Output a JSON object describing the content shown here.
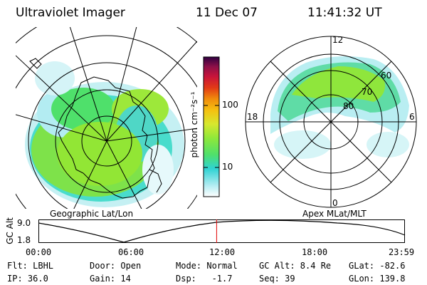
{
  "header": {
    "instrument": "Ultraviolet Imager",
    "date": "11 Dec 07",
    "time": "11:41:32 UT"
  },
  "left_panel": {
    "caption": "Geographic Lat/Lon"
  },
  "right_panel": {
    "caption": "Apex MLat/MLT",
    "mlt_labels": {
      "top": "12",
      "left": "18",
      "right": "6",
      "bottom": "0"
    },
    "lat_labels": [
      "80",
      "70",
      "60"
    ]
  },
  "colorbar": {
    "unit_label": "photon cm⁻²s⁻¹",
    "ticks": [
      "100",
      "10"
    ],
    "colors": [
      "#ffffff",
      "#b3ecf2",
      "#2fd3d3",
      "#4fe06b",
      "#8fe83a",
      "#d7e82e",
      "#f5c010",
      "#f08c0c",
      "#e23a16",
      "#c8143a",
      "#8e1048",
      "#300040"
    ]
  },
  "timeline": {
    "y_label": "GC Alt",
    "y_ticks": [
      "9.0",
      "1.8"
    ],
    "x_ticks": [
      "00:00",
      "06:00",
      "12:00",
      "18:00",
      "23:59"
    ],
    "marker_color": "#e00000",
    "current_fraction": 0.4872
  },
  "info": {
    "filter": "Flt: LBHL",
    "ip": "IP: 36.0",
    "door": "Door: Open",
    "gain": "Gain: 14",
    "mode": "Mode: Normal",
    "dsp": "Dsp:   -1.7",
    "gc_alt": "GC Alt: 8.4 Re",
    "seq": "Seq: 39",
    "glat": "GLat: -82.6",
    "glon": "GLon: 139.8"
  }
}
